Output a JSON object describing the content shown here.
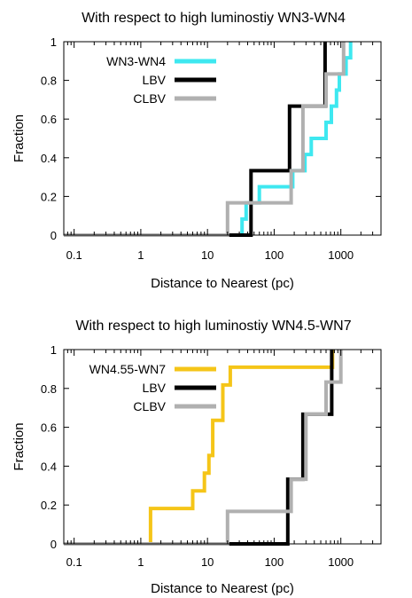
{
  "chart_data": [
    {
      "type": "line",
      "step": true,
      "title": "With respect to high luminostiy WN3-WN4",
      "xlabel": "Distance to Nearest (pc)",
      "ylabel": "Fraction",
      "xscale": "log",
      "xlim": [
        0.07,
        4000
      ],
      "ylim": [
        0,
        1
      ],
      "xticks": [
        0.1,
        1,
        10,
        100,
        1000
      ],
      "xtick_labels": [
        "0.1",
        "1",
        "10",
        "100",
        "1000"
      ],
      "yticks": [
        0,
        0.2,
        0.4,
        0.6,
        0.8,
        1
      ],
      "ytick_labels": [
        "0",
        "0.2",
        "0.4",
        "0.6",
        "0.8",
        "1"
      ],
      "legend_position": "top-left",
      "series": [
        {
          "name": "WN3-WN4",
          "color": "#3ee8f0",
          "points": [
            [
              0.07,
              0
            ],
            [
              33,
              0
            ],
            [
              33,
              0.083
            ],
            [
              38,
              0.083
            ],
            [
              38,
              0.167
            ],
            [
              60,
              0.167
            ],
            [
              60,
              0.25
            ],
            [
              190,
              0.25
            ],
            [
              190,
              0.333
            ],
            [
              290,
              0.333
            ],
            [
              290,
              0.417
            ],
            [
              360,
              0.417
            ],
            [
              360,
              0.5
            ],
            [
              600,
              0.5
            ],
            [
              600,
              0.583
            ],
            [
              720,
              0.583
            ],
            [
              720,
              0.667
            ],
            [
              860,
              0.667
            ],
            [
              860,
              0.75
            ],
            [
              950,
              0.75
            ],
            [
              950,
              0.833
            ],
            [
              1200,
              0.833
            ],
            [
              1200,
              0.917
            ],
            [
              1400,
              0.917
            ],
            [
              1400,
              1
            ]
          ]
        },
        {
          "name": "LBV",
          "color": "#000000",
          "points": [
            [
              0.07,
              0
            ],
            [
              45,
              0
            ],
            [
              45,
              0.333
            ],
            [
              170,
              0.333
            ],
            [
              170,
              0.667
            ],
            [
              580,
              0.667
            ],
            [
              580,
              1
            ]
          ]
        },
        {
          "name": "CLBV",
          "color": "#b0b0b0",
          "points": [
            [
              0.07,
              0
            ],
            [
              20,
              0
            ],
            [
              20,
              0.167
            ],
            [
              180,
              0.167
            ],
            [
              180,
              0.333
            ],
            [
              270,
              0.333
            ],
            [
              270,
              0.667
            ],
            [
              600,
              0.667
            ],
            [
              600,
              0.833
            ],
            [
              1100,
              0.833
            ],
            [
              1100,
              1
            ]
          ]
        }
      ]
    },
    {
      "type": "line",
      "step": true,
      "title": "With respect to high luminostiy WN4.5-WN7",
      "xlabel": "Distance to Nearest (pc)",
      "ylabel": "Fraction",
      "xscale": "log",
      "xlim": [
        0.07,
        4000
      ],
      "ylim": [
        0,
        1
      ],
      "xticks": [
        0.1,
        1,
        10,
        100,
        1000
      ],
      "xtick_labels": [
        "0.1",
        "1",
        "10",
        "100",
        "1000"
      ],
      "yticks": [
        0,
        0.2,
        0.4,
        0.6,
        0.8,
        1
      ],
      "ytick_labels": [
        "0",
        "0.2",
        "0.4",
        "0.6",
        "0.8",
        "1"
      ],
      "legend_position": "top-left",
      "series": [
        {
          "name": "WN4.55-WN7",
          "color": "#f5c518",
          "points": [
            [
              0.07,
              0
            ],
            [
              1.4,
              0
            ],
            [
              1.4,
              0.182
            ],
            [
              6,
              0.182
            ],
            [
              6,
              0.273
            ],
            [
              9,
              0.273
            ],
            [
              9,
              0.364
            ],
            [
              10.5,
              0.364
            ],
            [
              10.5,
              0.455
            ],
            [
              12,
              0.455
            ],
            [
              12,
              0.636
            ],
            [
              17,
              0.636
            ],
            [
              17,
              0.818
            ],
            [
              22,
              0.818
            ],
            [
              22,
              0.909
            ],
            [
              750,
              0.909
            ],
            [
              750,
              1
            ]
          ]
        },
        {
          "name": "LBV",
          "color": "#000000",
          "points": [
            [
              0.07,
              0
            ],
            [
              160,
              0
            ],
            [
              160,
              0.333
            ],
            [
              270,
              0.333
            ],
            [
              270,
              0.667
            ],
            [
              730,
              0.667
            ],
            [
              730,
              1
            ]
          ]
        },
        {
          "name": "CLBV",
          "color": "#b0b0b0",
          "points": [
            [
              0.07,
              0
            ],
            [
              20,
              0
            ],
            [
              20,
              0.167
            ],
            [
              180,
              0.167
            ],
            [
              180,
              0.333
            ],
            [
              300,
              0.333
            ],
            [
              300,
              0.667
            ],
            [
              600,
              0.667
            ],
            [
              600,
              0.833
            ],
            [
              1000,
              0.833
            ],
            [
              1000,
              1
            ]
          ]
        }
      ]
    }
  ]
}
